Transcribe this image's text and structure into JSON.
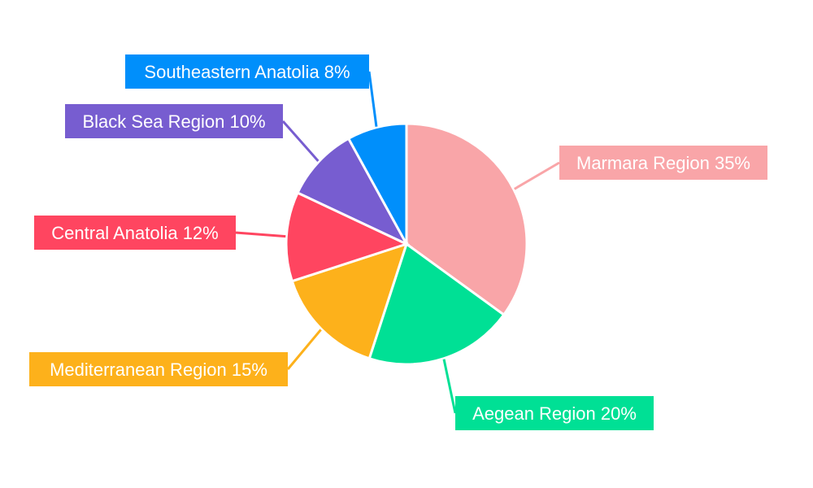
{
  "chart_data": {
    "type": "pie",
    "title": "",
    "start_angle_deg": 0,
    "direction": "clockwise",
    "legend": "none",
    "slices": [
      {
        "label": "Marmara Region 35%",
        "name": "Marmara Region",
        "value": 35,
        "color": "#f9a5a8"
      },
      {
        "label": "Aegean Region 20%",
        "name": "Aegean Region",
        "value": 20,
        "color": "#00e095"
      },
      {
        "label": "Mediterranean Region 15%",
        "name": "Mediterranean Region",
        "value": 15,
        "color": "#fdb11b"
      },
      {
        "label": "Central Anatolia 12%",
        "name": "Central Anatolia",
        "value": 12,
        "color": "#ff4560"
      },
      {
        "label": "Black Sea Region 10%",
        "name": "Black Sea Region",
        "value": 10,
        "color": "#775dd0"
      },
      {
        "label": "Southeastern Anatolia 8%",
        "name": "Southeastern Anatolia",
        "value": 8,
        "color": "#008ffb"
      }
    ]
  }
}
